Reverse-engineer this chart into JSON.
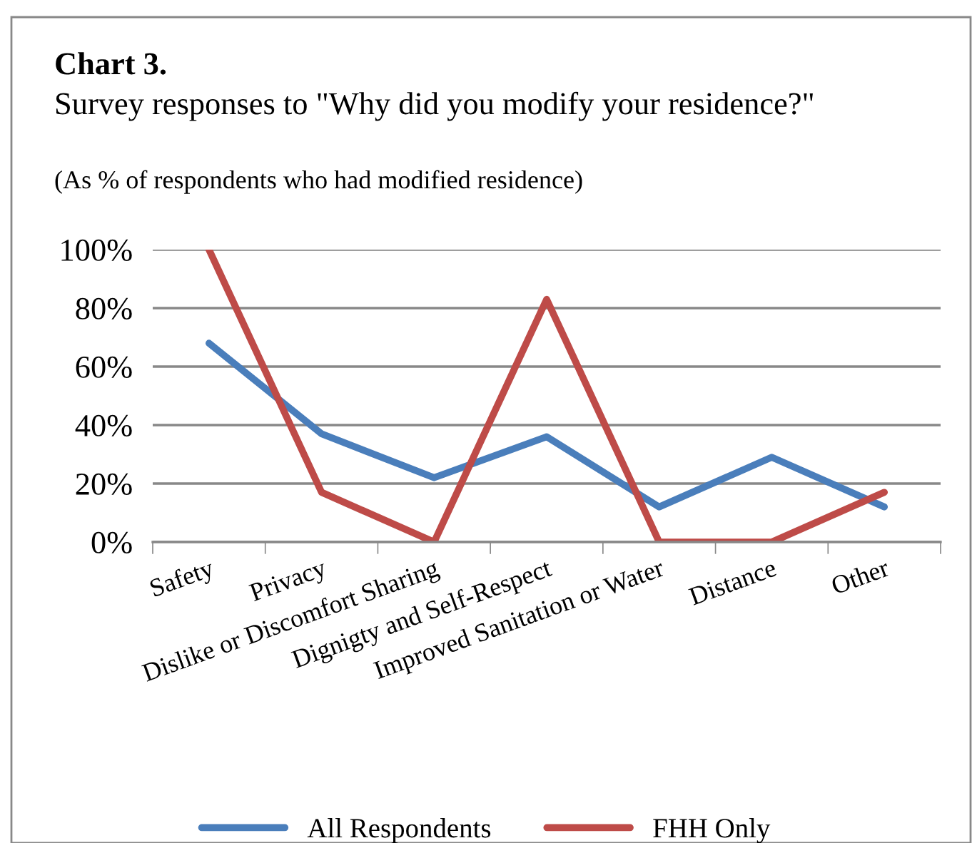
{
  "chart_data": {
    "type": "line",
    "title": "Chart 3.",
    "subtitle": "Survey responses to \"Why did you modify your residence?\"",
    "annotations": [
      "(As % of respondents who had modified residence)"
    ],
    "categories": [
      "Safety",
      "Privacy",
      "Dislike or Discomfort Sharing",
      "Dignigty and Self-Respect",
      "Improved Sanitation or Water",
      "Distance",
      "Other"
    ],
    "series": [
      {
        "name": "All Respondents",
        "color": "#4a7ebb",
        "values": [
          68,
          37,
          22,
          36,
          12,
          29,
          12
        ]
      },
      {
        "name": "FHH Only",
        "color": "#be4b48",
        "values": [
          100,
          17,
          0,
          83,
          0,
          0,
          17
        ]
      }
    ],
    "ylim": [
      0,
      100
    ],
    "yticks": [
      {
        "value": 0,
        "label": "0%"
      },
      {
        "value": 20,
        "label": "20%"
      },
      {
        "value": 40,
        "label": "40%"
      },
      {
        "value": 60,
        "label": "60%"
      },
      {
        "value": 80,
        "label": "80%"
      },
      {
        "value": 100,
        "label": "100%"
      }
    ],
    "grid": "y",
    "legend": "bottom",
    "marker": "none",
    "line_style": "solid"
  }
}
